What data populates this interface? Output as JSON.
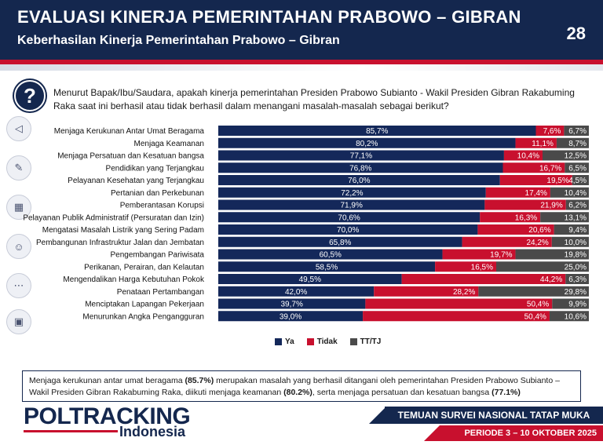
{
  "header": {
    "title": "EVALUASI KINERJA PEMERINTAHAN PRABOWO – GIBRAN",
    "subtitle": "Keberhasilan Kinerja Pemerintahan Prabowo – Gibran",
    "page_number": "28"
  },
  "question": "Menurut Bapak/Ibu/Saudara, apakah kinerja pemerintahan Presiden Prabowo Subianto  - Wakil Presiden Gibran Rakabuming Raka saat ini berhasil atau tidak berhasil dalam menangani masalah-masalah sebagai berikut?",
  "question_badge": "?",
  "colors": {
    "ya": "#14285a",
    "tidak": "#c8102e",
    "tt": "#4a4a4a",
    "accent": "#14274e"
  },
  "chart_data": {
    "type": "bar",
    "orientation": "horizontal-stacked-100",
    "categories": [
      "Menjaga Kerukunan Antar Umat Beragama",
      "Menjaga Keamanan",
      "Menjaga Persatuan dan Kesatuan bangsa",
      "Pendidikan yang Terjangkau",
      "Pelayanan Kesehatan yang Terjangkau",
      "Pertanian dan Perkebunan",
      "Pemberantasan Korupsi",
      "Pelayanan Publik Administratif (Persuratan dan Izin)",
      "Mengatasi Masalah Listrik yang Sering Padam",
      "Pembangunan Infrastruktur Jalan dan Jembatan",
      "Pengembangan Pariwisata",
      "Perikanan, Perairan, dan Kelautan",
      "Mengendalikan Harga Kebutuhan Pokok",
      "Penataan Pertambangan",
      "Menciptakan Lapangan Pekerjaan",
      "Menurunkan Angka Pengangguran"
    ],
    "series": [
      {
        "name": "Ya",
        "values": [
          85.7,
          80.2,
          77.1,
          76.8,
          76.0,
          72.2,
          71.9,
          70.6,
          70.0,
          65.8,
          60.5,
          58.5,
          49.5,
          42.0,
          39.7,
          39.0
        ]
      },
      {
        "name": "Tidak",
        "values": [
          7.6,
          11.1,
          10.4,
          16.7,
          19.5,
          17.4,
          21.9,
          16.3,
          20.6,
          24.2,
          19.7,
          16.5,
          44.2,
          28.2,
          50.4,
          50.4
        ]
      },
      {
        "name": "TT/TJ",
        "values": [
          6.7,
          8.7,
          12.5,
          6.5,
          4.5,
          10.4,
          6.2,
          13.1,
          9.4,
          10.0,
          19.8,
          25.0,
          6.3,
          29.8,
          9.9,
          10.6
        ]
      }
    ],
    "value_format": "comma-decimal-percent",
    "legend_position": "bottom-center"
  },
  "legend": [
    {
      "label": "Ya",
      "color": "#14285a"
    },
    {
      "label": "Tidak",
      "color": "#c8102e"
    },
    {
      "label": "TT/TJ",
      "color": "#4a4a4a"
    }
  ],
  "note": {
    "part1": "Menjaga kerukunan antar umat beragama ",
    "bold1": "(85.7%)",
    "part2": " merupakan masalah yang berhasil ditangani oleh pemerintahan Presiden Prabowo Subianto – Wakil Presiden Gibran Rakabuming Raka, diikuti menjaga keamanan ",
    "bold2": "(80.2%)",
    "part3": ", serta menjaga persatuan dan kesatuan bangsa ",
    "bold3": "(77.1%)"
  },
  "footer": {
    "logo_main": "POLTRACKING",
    "logo_sub": "Indonesia",
    "band_text": "TEMUAN SURVEI NASIONAL TATAP MUKA",
    "period_text": "PERIODE 3 – 10 OKTOBER 2025"
  },
  "rail_icons": [
    "question-icon",
    "back-icon",
    "pen-icon",
    "grid-icon",
    "people-icon",
    "more-icon",
    "presentation-icon"
  ]
}
